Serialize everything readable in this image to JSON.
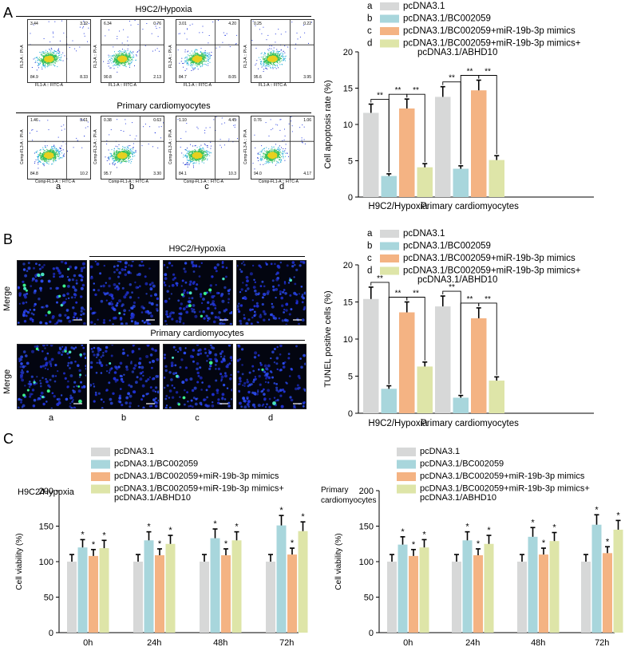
{
  "panel_labels": {
    "A": "A",
    "B": "B",
    "C": "C"
  },
  "colors": {
    "a": "#d7d8d8",
    "b": "#a8d6dc",
    "c": "#f4b383",
    "d": "#dee5a8",
    "error": "#000000"
  },
  "legend_entries": [
    {
      "key": "a",
      "label": "pcDNA3.1"
    },
    {
      "key": "b",
      "label": "pcDNA3.1/BC002059"
    },
    {
      "key": "c",
      "label": "pcDNA3.1/BC002059+miR-19b-3p mimics"
    },
    {
      "key": "d",
      "label": "pcDNA3.1/BC002059+miR-19b-3p mimics+",
      "label2": "pcDNA3.1/ABHD10"
    }
  ],
  "panelA": {
    "h9c2_title": "H9C2/Hypoxia",
    "primary_title": "Primary cardiomyocytes",
    "group_letters": [
      "a",
      "b",
      "c",
      "d"
    ],
    "h9c2_y_label": "FL3-A :: PI-A",
    "h9c2_x_label": "FL1-A :: FITC-A",
    "primary_y_label": "Comp-FL3-A :: PI-A",
    "primary_x_label": "Comp-FL1-A :: FITC-A",
    "h9c2_quadrants": [
      {
        "ul": "3.44",
        "ur": "3.32",
        "ll": "84.9",
        "lr": "8.33"
      },
      {
        "ul": "6.34",
        "ur": "0.76",
        "ll": "90.8",
        "lr": "2.13"
      },
      {
        "ul": "3.01",
        "ur": "4.20",
        "ll": "84.7",
        "lr": "8.05"
      },
      {
        "ul": "0.25",
        "ur": "0.22",
        "ll": "95.6",
        "lr": "3.95"
      }
    ],
    "primary_quadrants": [
      {
        "ul": "1.46",
        "ur": "3.61",
        "ll": "84.8",
        "lr": "10.2"
      },
      {
        "ul": "0.38",
        "ur": "0.63",
        "ll": "95.7",
        "lr": "3.30"
      },
      {
        "ul": "1.10",
        "ur": "4.45",
        "ll": "84.1",
        "lr": "10.3"
      },
      {
        "ul": "0.76",
        "ur": "1.06",
        "ll": "94.0",
        "lr": "4.17"
      }
    ]
  },
  "panelB": {
    "h9c2_title": "H9C2/Hypoxia",
    "primary_title": "Primary cardiomyocytes",
    "row_label": "Merge",
    "group_letters": [
      "a",
      "b",
      "c",
      "d"
    ],
    "green_density": [
      [
        10,
        1,
        7,
        1
      ],
      [
        12,
        1,
        5,
        2
      ]
    ]
  },
  "chart_data": [
    {
      "id": "apoptosis",
      "type": "bar",
      "categories": [
        "H9C2/Hypoxia",
        "Primary cardiomyocytes"
      ],
      "ylabel": "Cell apoptosis rate (%)",
      "ylim": [
        0,
        20
      ],
      "yticks": [
        0,
        5,
        10,
        15,
        20
      ],
      "series": [
        {
          "name": "pcDNA3.1",
          "values": [
            11.6,
            13.8
          ],
          "errors": [
            1.2,
            1.4
          ]
        },
        {
          "name": "pcDNA3.1/BC002059",
          "values": [
            2.9,
            3.9
          ],
          "errors": [
            0.3,
            0.4
          ]
        },
        {
          "name": "pcDNA3.1/BC002059+miR-19b-3p mimics",
          "values": [
            12.2,
            14.7
          ],
          "errors": [
            1.3,
            1.4
          ]
        },
        {
          "name": "pcDNA3.1/BC002059+miR-19b-3p mimics+pcDNA3.1/ABHD10",
          "values": [
            4.1,
            5.1
          ],
          "errors": [
            0.5,
            0.6
          ]
        }
      ],
      "significance": "**"
    },
    {
      "id": "tunel",
      "type": "bar",
      "categories": [
        "H9C2/Hypoxia",
        "Primary cardiomyocytes"
      ],
      "ylabel": "TUNEL positive cells (%)",
      "ylim": [
        0,
        20
      ],
      "yticks": [
        0,
        5,
        10,
        15,
        20
      ],
      "series": [
        {
          "name": "pcDNA3.1",
          "values": [
            15.4,
            14.4
          ],
          "errors": [
            1.6,
            1.4
          ]
        },
        {
          "name": "pcDNA3.1/BC002059",
          "values": [
            3.3,
            2.1
          ],
          "errors": [
            0.4,
            0.3
          ]
        },
        {
          "name": "pcDNA3.1/BC002059+miR-19b-3p mimics",
          "values": [
            13.6,
            12.8
          ],
          "errors": [
            1.4,
            1.4
          ]
        },
        {
          "name": "pcDNA3.1/BC002059+miR-19b-3p mimics+pcDNA3.1/ABHD10",
          "values": [
            6.3,
            4.4
          ],
          "errors": [
            0.6,
            0.5
          ]
        }
      ],
      "significance": "**"
    },
    {
      "id": "viability_h9c2",
      "type": "bar",
      "title": "H9C2/Hypoxia",
      "categories": [
        "0h",
        "24h",
        "48h",
        "72h"
      ],
      "ylabel": "Cell viability (%)",
      "ylim": [
        0,
        200
      ],
      "yticks": [
        0,
        50,
        100,
        150,
        200
      ],
      "series": [
        {
          "name": "pcDNA3.1",
          "values": [
            100,
            100,
            100,
            100
          ],
          "errors": [
            10,
            10,
            10,
            10
          ]
        },
        {
          "name": "pcDNA3.1/BC002059",
          "values": [
            120,
            130,
            133,
            151
          ],
          "errors": [
            11,
            12,
            13,
            14
          ]
        },
        {
          "name": "pcDNA3.1/BC002059+miR-19b-3p mimics",
          "values": [
            108,
            109,
            109,
            110
          ],
          "errors": [
            9,
            9,
            9,
            9
          ]
        },
        {
          "name": "pcDNA3.1/BC002059+miR-19b-3p mimics+pcDNA3.1/ABHD10",
          "values": [
            119,
            125,
            130,
            143
          ],
          "errors": [
            11,
            12,
            12,
            13
          ]
        }
      ],
      "significance": "*"
    },
    {
      "id": "viability_primary",
      "type": "bar",
      "title": "Primary cardiomyocytes",
      "categories": [
        "0h",
        "24h",
        "48h",
        "72h"
      ],
      "ylabel": "Cell viability (%)",
      "ylim": [
        0,
        200
      ],
      "yticks": [
        0,
        50,
        100,
        150,
        200
      ],
      "series": [
        {
          "name": "pcDNA3.1",
          "values": [
            100,
            100,
            100,
            100
          ],
          "errors": [
            10,
            10,
            10,
            10
          ]
        },
        {
          "name": "pcDNA3.1/BC002059",
          "values": [
            124,
            130,
            135,
            152
          ],
          "errors": [
            11,
            12,
            13,
            14
          ]
        },
        {
          "name": "pcDNA3.1/BC002059+miR-19b-3p mimics",
          "values": [
            108,
            109,
            110,
            112
          ],
          "errors": [
            9,
            9,
            9,
            9
          ]
        },
        {
          "name": "pcDNA3.1/BC002059+miR-19b-3p mimics+pcDNA3.1/ABHD10",
          "values": [
            120,
            125,
            129,
            145
          ],
          "errors": [
            11,
            12,
            12,
            13
          ]
        }
      ],
      "significance": "*"
    }
  ],
  "c_labels": {
    "h9c2_title": "H9C2/Hypoxia",
    "primary_title_1": "Primary",
    "primary_title_2": "cardiomyocytes"
  }
}
